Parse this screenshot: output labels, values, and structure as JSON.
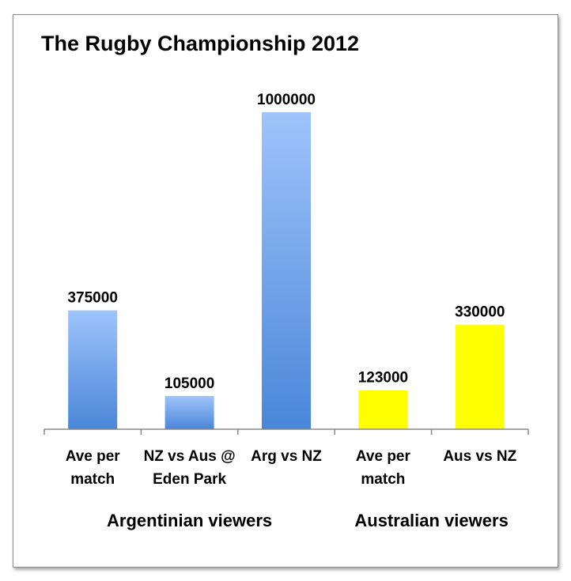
{
  "chart_data": {
    "type": "bar",
    "title": "The Rugby Championship 2012",
    "categories": [
      {
        "lines": [
          "Ave per",
          "match"
        ],
        "group": "Argentinian viewers",
        "value": 375000,
        "label": "375000",
        "color": "blue"
      },
      {
        "lines": [
          "NZ vs Aus @",
          "Eden Park"
        ],
        "group": "Argentinian viewers",
        "value": 105000,
        "label": "105000",
        "color": "blue"
      },
      {
        "lines": [
          "Arg vs NZ"
        ],
        "group": "Argentinian viewers",
        "value": 1000000,
        "label": "1000000",
        "color": "blue"
      },
      {
        "lines": [
          "Ave per",
          "match"
        ],
        "group": "Australian viewers",
        "value": 123000,
        "label": "123000",
        "color": "yellow"
      },
      {
        "lines": [
          "Aus vs NZ"
        ],
        "group": "Australian viewers",
        "value": 330000,
        "label": "330000",
        "color": "yellow"
      }
    ],
    "groups": [
      "Argentinian viewers",
      "Australian viewers"
    ],
    "ylim": [
      0,
      1000000
    ],
    "grid": false,
    "colors": {
      "blue_top": "#9ec4fb",
      "blue_bottom": "#4a86d8",
      "yellow": "#ffff00"
    }
  }
}
